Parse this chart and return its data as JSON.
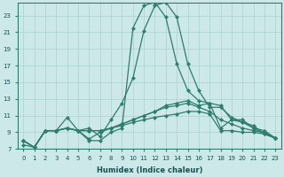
{
  "xlabel": "Humidex (Indice chaleur)",
  "bg_color": "#cce8e8",
  "grid_color": "#b0d4d4",
  "line_color": "#2e7d6e",
  "xlim": [
    -0.5,
    23.5
  ],
  "ylim": [
    7,
    24.5
  ],
  "yticks": [
    7,
    9,
    11,
    13,
    15,
    17,
    19,
    21,
    23
  ],
  "xticks": [
    0,
    1,
    2,
    3,
    4,
    5,
    6,
    7,
    8,
    9,
    10,
    11,
    12,
    13,
    14,
    15,
    16,
    17,
    18,
    19,
    20,
    21,
    22,
    23
  ],
  "lines": [
    {
      "x": [
        0,
        1,
        2,
        3,
        4,
        5,
        6,
        7,
        8,
        9,
        10,
        11,
        12,
        13,
        14,
        15,
        16,
        17,
        18,
        19,
        20,
        21,
        22,
        23
      ],
      "y": [
        8.0,
        7.2,
        9.2,
        9.2,
        10.8,
        9.2,
        8.0,
        8.0,
        9.0,
        9.5,
        21.5,
        24.2,
        24.6,
        22.8,
        17.2,
        14.0,
        12.8,
        12.5,
        12.2,
        10.5,
        10.2,
        9.8,
        8.8,
        8.3
      ]
    },
    {
      "x": [
        0,
        1,
        2,
        3,
        4,
        5,
        6,
        7,
        8,
        9,
        10,
        11,
        12,
        13,
        14,
        15,
        16,
        17,
        18,
        19,
        20,
        21,
        22,
        23
      ],
      "y": [
        8.0,
        7.2,
        9.2,
        9.2,
        9.5,
        9.2,
        9.5,
        8.5,
        10.5,
        12.5,
        15.5,
        21.2,
        24.2,
        24.6,
        22.8,
        17.2,
        14.0,
        12.0,
        12.0,
        10.8,
        10.2,
        9.5,
        8.8,
        8.3
      ]
    },
    {
      "x": [
        0,
        1,
        2,
        3,
        4,
        5,
        6,
        7,
        8,
        9,
        10,
        11,
        12,
        13,
        14,
        15,
        16,
        17,
        18,
        19,
        20,
        21,
        22,
        23
      ],
      "y": [
        8.0,
        7.2,
        9.2,
        9.2,
        9.5,
        9.2,
        8.2,
        9.0,
        9.5,
        10.0,
        10.5,
        11.0,
        11.5,
        12.2,
        12.5,
        12.8,
        12.2,
        12.5,
        9.5,
        10.5,
        10.5,
        9.5,
        9.2,
        8.3
      ]
    },
    {
      "x": [
        0,
        1,
        2,
        3,
        4,
        5,
        6,
        7,
        8,
        9,
        10,
        11,
        12,
        13,
        14,
        15,
        16,
        17,
        18,
        19,
        20,
        21,
        22,
        23
      ],
      "y": [
        8.0,
        7.2,
        9.2,
        9.2,
        9.5,
        9.2,
        9.2,
        9.2,
        9.5,
        10.0,
        10.5,
        11.0,
        11.5,
        12.0,
        12.2,
        12.5,
        12.0,
        11.5,
        10.5,
        10.0,
        9.5,
        9.2,
        9.0,
        8.3
      ]
    },
    {
      "x": [
        0,
        1,
        2,
        3,
        4,
        5,
        6,
        7,
        8,
        9,
        10,
        11,
        12,
        13,
        14,
        15,
        16,
        17,
        18,
        19,
        20,
        21,
        22,
        23
      ],
      "y": [
        7.5,
        7.2,
        9.2,
        9.2,
        9.5,
        9.2,
        9.2,
        9.2,
        9.5,
        9.8,
        10.2,
        10.5,
        10.8,
        11.0,
        11.2,
        11.5,
        11.5,
        11.2,
        9.2,
        9.2,
        9.0,
        9.0,
        8.8,
        8.3
      ]
    }
  ]
}
